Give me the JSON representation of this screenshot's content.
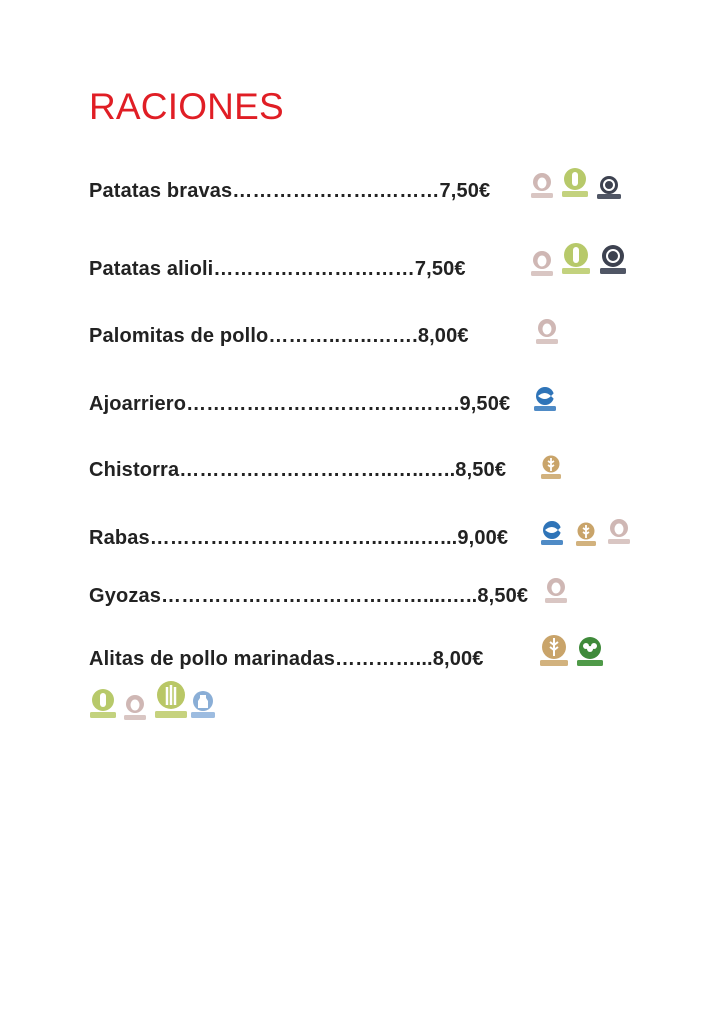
{
  "menu": {
    "title": "RACIONES",
    "items": [
      {
        "line": "Patatas bravas………………….………7,50€",
        "allergens": [
          "egg-icon",
          "mustard-icon",
          "sulphites-icon"
        ]
      },
      {
        "line": "Patatas alioli…………………………7,50€",
        "allergens": [
          "egg-icon",
          "mustard-icon",
          "sulphites-icon"
        ]
      },
      {
        "line": "Palomitas de pollo………..…..…….8,00€",
        "allergens": [
          "egg-icon"
        ]
      },
      {
        "line": "Ajoarriero…………………………….…….9,50€",
        "allergens": [
          "fish-icon"
        ]
      },
      {
        "line": "Chistorra…………………………..…..…..8,50€",
        "allergens": [
          "gluten-icon"
        ]
      },
      {
        "line": "Rabas……………………………..…...…...9,00€",
        "allergens": [
          "fish-icon",
          "gluten-icon",
          "egg-icon"
        ]
      },
      {
        "line": "Gyozas…………………………………....…..8,50€",
        "allergens": [
          "egg-icon"
        ]
      },
      {
        "line": "Alitas de pollo marinadas…………...8,00€",
        "allergens": [
          "gluten-icon",
          "soy-icon",
          "mustard-icon",
          "egg-icon",
          "celery-icon",
          "milk-icon"
        ]
      }
    ]
  },
  "colors": {
    "title": "#e01e25",
    "text": "#222222",
    "egg": "#cfb7b4",
    "mustard": "#b7c96a",
    "sulphites": "#3d4250",
    "fish": "#2f74b8",
    "gluten": "#c9a46a",
    "soy": "#3f8a3a",
    "celery": "#b9c766",
    "milk": "#8aaed6"
  }
}
